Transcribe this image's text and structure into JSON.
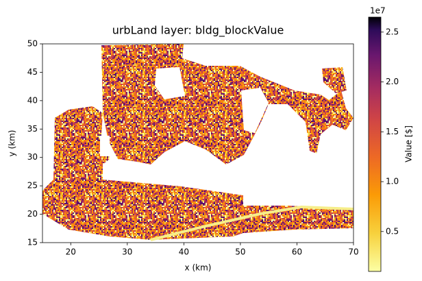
{
  "chart_data": {
    "type": "image",
    "title": "urbLand layer: bldg_blockValue",
    "xlabel": "x (km)",
    "ylabel": "y (km)",
    "xlim": [
      15,
      70
    ],
    "xticks": [
      20,
      30,
      40,
      50,
      60,
      70
    ],
    "ylim": [
      15,
      50
    ],
    "yticks": [
      15,
      20,
      25,
      30,
      35,
      40,
      45,
      50
    ],
    "colormap": "inferno_r",
    "colorbar": {
      "label": "Value [$]",
      "offset_label": "1e7",
      "lim": [
        1000000,
        26500000
      ],
      "ticks": [
        {
          "value": 5000000,
          "label": "0.5"
        },
        {
          "value": 10000000,
          "label": "1.0"
        },
        {
          "value": 15000000,
          "label": "1.5"
        },
        {
          "value": 20000000,
          "label": "2.0"
        },
        {
          "value": 25000000,
          "label": "2.5"
        }
      ]
    }
  }
}
